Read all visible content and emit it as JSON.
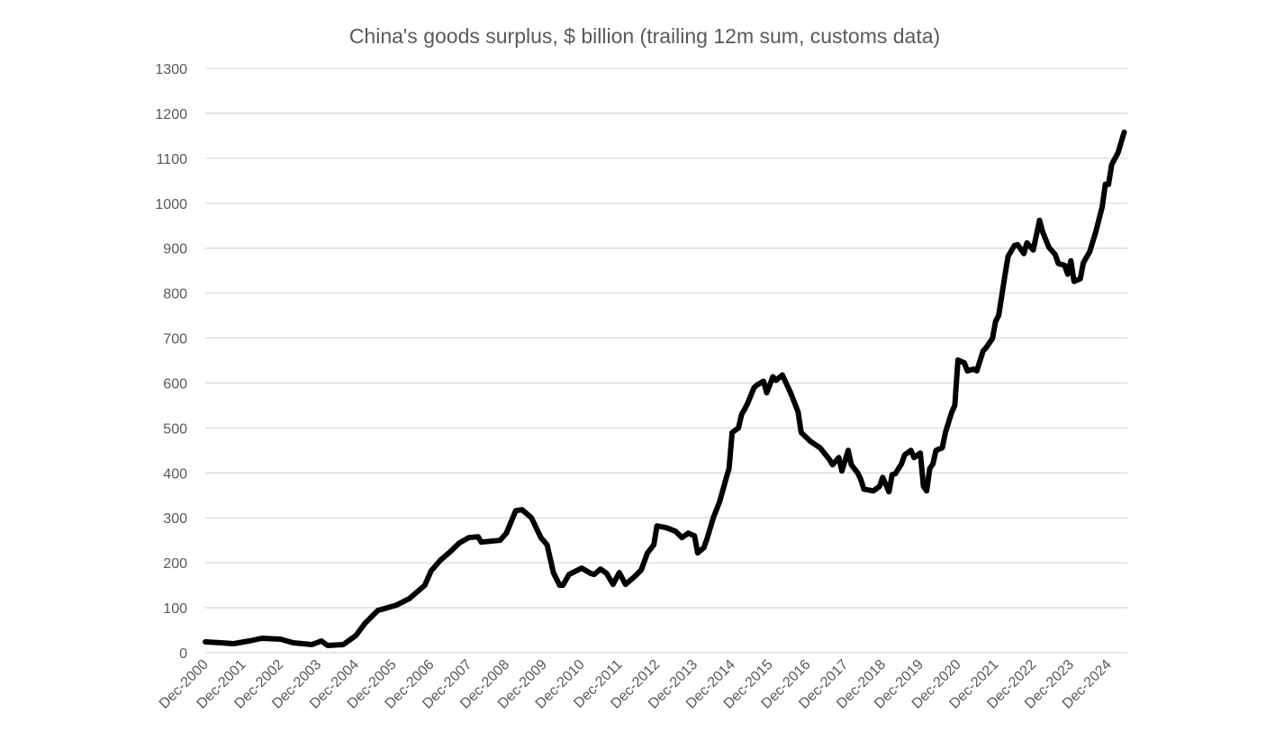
{
  "chart_data": {
    "type": "line",
    "title": "China's goods surplus, $ billion (trailing 12m sum, customs data)",
    "xlabel": "",
    "ylabel": "",
    "ylim": [
      0,
      1300
    ],
    "yticks": [
      0,
      100,
      200,
      300,
      400,
      500,
      600,
      700,
      800,
      900,
      1000,
      1100,
      1200,
      1300
    ],
    "xlim": [
      "2000-12",
      "2025-06"
    ],
    "xtick_labels": [
      "Dec-2000",
      "Dec-2001",
      "Dec-2002",
      "Dec-2003",
      "Dec-2004",
      "Dec-2005",
      "Dec-2006",
      "Dec-2007",
      "Dec-2008",
      "Dec-2009",
      "Dec-2010",
      "Dec-2011",
      "Dec-2012",
      "Dec-2013",
      "Dec-2014",
      "Dec-2015",
      "Dec-2016",
      "Dec-2017",
      "Dec-2018",
      "Dec-2019",
      "Dec-2020",
      "Dec-2021",
      "Dec-2022",
      "Dec-2023",
      "Dec-2024"
    ],
    "grid": "horizontal",
    "legend": "none",
    "colors": {
      "line": "#000000",
      "grid": "#d9d9d9",
      "text": "#595959"
    },
    "series": [
      {
        "x": [
          "2000-12",
          "2001-05",
          "2001-09",
          "2002-02",
          "2002-06",
          "2002-12",
          "2003-04",
          "2003-10",
          "2004-01",
          "2004-03",
          "2004-08",
          "2004-12",
          "2005-03",
          "2005-07",
          "2006-01",
          "2006-05",
          "2006-10",
          "2006-12",
          "2007-03",
          "2007-06",
          "2007-09",
          "2007-12",
          "2008-03",
          "2008-04",
          "2008-07",
          "2008-10",
          "2008-12",
          "2009-03",
          "2009-05",
          "2009-08",
          "2009-11",
          "2010-01",
          "2010-03",
          "2010-05",
          "2010-06",
          "2010-08",
          "2010-12",
          "2011-03",
          "2011-04",
          "2011-06",
          "2011-08",
          "2011-10",
          "2011-12",
          "2012-02",
          "2012-05",
          "2012-07",
          "2012-09",
          "2012-11",
          "2012-12",
          "2013-03",
          "2013-06",
          "2013-08",
          "2013-10",
          "2013-12",
          "2014-01",
          "2014-03",
          "2014-04",
          "2014-06",
          "2014-08",
          "2014-10",
          "2014-11",
          "2014-12",
          "2015-02",
          "2015-03",
          "2015-04",
          "2015-05",
          "2015-07",
          "2015-08",
          "2015-10",
          "2015-11",
          "2016-01",
          "2016-02",
          "2016-04",
          "2016-06",
          "2016-07",
          "2016-09",
          "2016-10",
          "2017-01",
          "2017-04",
          "2017-07",
          "2017-08",
          "2017-10",
          "2017-11",
          "2018-01",
          "2018-02",
          "2018-04",
          "2018-05",
          "2018-06",
          "2018-09",
          "2018-11",
          "2018-12",
          "2019-02",
          "2019-03",
          "2019-04",
          "2019-06",
          "2019-07",
          "2019-09",
          "2019-10",
          "2019-12",
          "2020-01",
          "2020-02",
          "2020-03",
          "2020-04",
          "2020-05",
          "2020-07",
          "2020-08",
          "2020-10",
          "2020-11",
          "2020-12",
          "2021-02",
          "2021-03",
          "2021-05",
          "2021-06",
          "2021-08",
          "2021-09",
          "2021-11",
          "2021-12",
          "2022-01",
          "2022-03",
          "2022-04",
          "2022-06",
          "2022-07",
          "2022-09",
          "2022-10",
          "2022-12",
          "2023-02",
          "2023-03",
          "2023-05",
          "2023-07",
          "2023-08",
          "2023-10",
          "2023-11",
          "2023-12",
          "2024-01",
          "2024-03",
          "2024-04",
          "2024-06",
          "2024-08",
          "2024-10",
          "2024-11",
          "2024-12",
          "2025-01",
          "2025-03",
          "2025-05"
        ],
        "y": [
          24,
          22,
          20,
          26,
          32,
          30,
          22,
          18,
          26,
          16,
          18,
          38,
          66,
          94,
          106,
          120,
          150,
          182,
          206,
          224,
          244,
          256,
          258,
          246,
          248,
          250,
          266,
          316,
          318,
          300,
          256,
          240,
          178,
          150,
          150,
          174,
          188,
          176,
          174,
          186,
          176,
          152,
          178,
          152,
          170,
          184,
          222,
          240,
          282,
          278,
          270,
          256,
          266,
          260,
          222,
          234,
          254,
          300,
          336,
          386,
          410,
          490,
          500,
          530,
          542,
          556,
          590,
          596,
          604,
          578,
          614,
          606,
          618,
          588,
          572,
          536,
          490,
          470,
          456,
          430,
          418,
          434,
          404,
          450,
          418,
          400,
          386,
          364,
          360,
          370,
          390,
          358,
          396,
          398,
          420,
          440,
          450,
          434,
          444,
          370,
          360,
          410,
          420,
          450,
          456,
          490,
          535,
          550,
          651,
          645,
          627,
          631,
          627,
          671,
          679,
          699,
          737,
          751,
          841,
          882,
          906,
          908,
          888,
          912,
          896,
          962,
          936,
          902,
          886,
          866,
          862,
          842,
          872,
          826,
          832,
          868,
          892,
          938,
          992,
          1042,
          1042,
          1086,
          1112,
          1158
        ]
      }
    ]
  }
}
